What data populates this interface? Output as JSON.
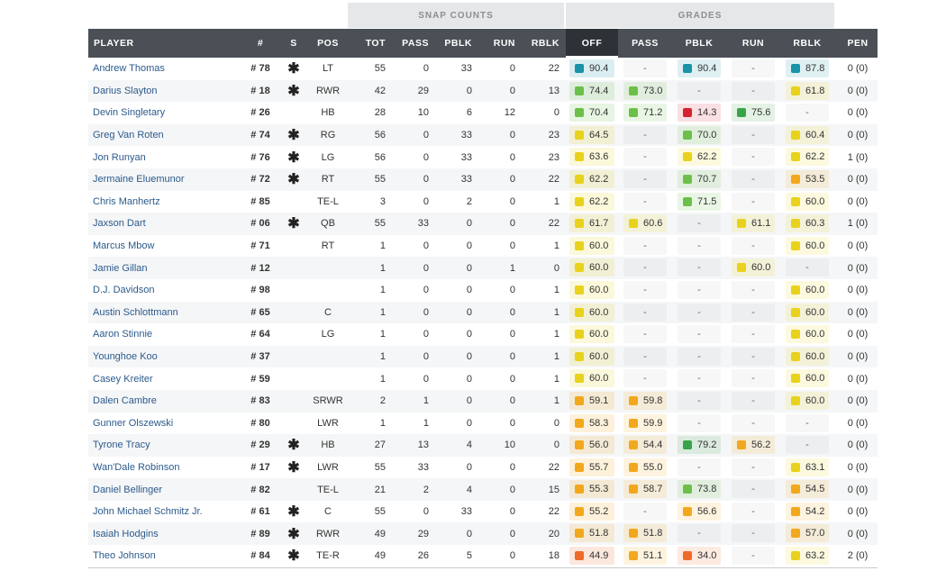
{
  "groups": {
    "snap": "SNAP COUNTS",
    "grades": "GRADES"
  },
  "headers": {
    "player": "PLAYER",
    "num": "#",
    "s": "S",
    "pos": "POS",
    "tot": "TOT",
    "pass": "PASS",
    "pblk": "PBLK",
    "run": "RUN",
    "rblk": "RBLK",
    "g_off": "OFF",
    "g_pass": "PASS",
    "g_pblk": "PBLK",
    "g_run": "RUN",
    "g_rblk": "RBLK",
    "pen": "PEN"
  },
  "colors": {
    "teal": "#1a93a8",
    "green": "#6cc04a",
    "darkgreen": "#3aa34a",
    "yellow": "#e8d21c",
    "orange": "#f2a81d",
    "darkorange": "#ee6a2a",
    "red": "#d4232f"
  },
  "rows": [
    {
      "name": "Andrew Thomas",
      "num": "# 78",
      "star": true,
      "pos": "LT",
      "tot": "55",
      "pass": "0",
      "pblk": "33",
      "run": "0",
      "rblk": "22",
      "g_off": "90.4",
      "g_pass": "-",
      "g_pblk": "90.4",
      "g_run": "-",
      "g_rblk": "87.8",
      "pen": "0 (0)"
    },
    {
      "name": "Darius Slayton",
      "num": "# 18",
      "star": true,
      "pos": "RWR",
      "tot": "42",
      "pass": "29",
      "pblk": "0",
      "run": "0",
      "rblk": "13",
      "g_off": "74.4",
      "g_pass": "73.0",
      "g_pblk": "-",
      "g_run": "-",
      "g_rblk": "61.8",
      "pen": "0 (0)"
    },
    {
      "name": "Devin Singletary",
      "num": "# 26",
      "star": false,
      "pos": "HB",
      "tot": "28",
      "pass": "10",
      "pblk": "6",
      "run": "12",
      "rblk": "0",
      "g_off": "70.4",
      "g_pass": "71.2",
      "g_pblk": "14.3",
      "g_run": "75.6",
      "g_rblk": "-",
      "pen": "0 (0)"
    },
    {
      "name": "Greg Van Roten",
      "num": "# 74",
      "star": true,
      "pos": "RG",
      "tot": "56",
      "pass": "0",
      "pblk": "33",
      "run": "0",
      "rblk": "23",
      "g_off": "64.5",
      "g_pass": "-",
      "g_pblk": "70.0",
      "g_run": "-",
      "g_rblk": "60.4",
      "pen": "0 (0)"
    },
    {
      "name": "Jon Runyan",
      "num": "# 76",
      "star": true,
      "pos": "LG",
      "tot": "56",
      "pass": "0",
      "pblk": "33",
      "run": "0",
      "rblk": "23",
      "g_off": "63.6",
      "g_pass": "-",
      "g_pblk": "62.2",
      "g_run": "-",
      "g_rblk": "62.2",
      "pen": "1 (0)"
    },
    {
      "name": "Jermaine Eluemunor",
      "num": "# 72",
      "star": true,
      "pos": "RT",
      "tot": "55",
      "pass": "0",
      "pblk": "33",
      "run": "0",
      "rblk": "22",
      "g_off": "62.2",
      "g_pass": "-",
      "g_pblk": "70.7",
      "g_run": "-",
      "g_rblk": "53.5",
      "pen": "0 (0)"
    },
    {
      "name": "Chris Manhertz",
      "num": "# 85",
      "star": false,
      "pos": "TE-L",
      "tot": "3",
      "pass": "0",
      "pblk": "2",
      "run": "0",
      "rblk": "1",
      "g_off": "62.2",
      "g_pass": "-",
      "g_pblk": "71.5",
      "g_run": "-",
      "g_rblk": "60.0",
      "pen": "0 (0)"
    },
    {
      "name": "Jaxson Dart",
      "num": "# 06",
      "star": true,
      "pos": "QB",
      "tot": "55",
      "pass": "33",
      "pblk": "0",
      "run": "0",
      "rblk": "22",
      "g_off": "61.7",
      "g_pass": "60.6",
      "g_pblk": "-",
      "g_run": "61.1",
      "g_rblk": "60.3",
      "pen": "1 (0)"
    },
    {
      "name": "Marcus Mbow",
      "num": "# 71",
      "star": false,
      "pos": "RT",
      "tot": "1",
      "pass": "0",
      "pblk": "0",
      "run": "0",
      "rblk": "1",
      "g_off": "60.0",
      "g_pass": "-",
      "g_pblk": "-",
      "g_run": "-",
      "g_rblk": "60.0",
      "pen": "0 (0)"
    },
    {
      "name": "Jamie Gillan",
      "num": "# 12",
      "star": false,
      "pos": "",
      "tot": "1",
      "pass": "0",
      "pblk": "0",
      "run": "1",
      "rblk": "0",
      "g_off": "60.0",
      "g_pass": "-",
      "g_pblk": "-",
      "g_run": "60.0",
      "g_rblk": "-",
      "pen": "0 (0)"
    },
    {
      "name": "D.J. Davidson",
      "num": "# 98",
      "star": false,
      "pos": "",
      "tot": "1",
      "pass": "0",
      "pblk": "0",
      "run": "0",
      "rblk": "1",
      "g_off": "60.0",
      "g_pass": "-",
      "g_pblk": "-",
      "g_run": "-",
      "g_rblk": "60.0",
      "pen": "0 (0)"
    },
    {
      "name": "Austin Schlottmann",
      "num": "# 65",
      "star": false,
      "pos": "C",
      "tot": "1",
      "pass": "0",
      "pblk": "0",
      "run": "0",
      "rblk": "1",
      "g_off": "60.0",
      "g_pass": "-",
      "g_pblk": "-",
      "g_run": "-",
      "g_rblk": "60.0",
      "pen": "0 (0)"
    },
    {
      "name": "Aaron Stinnie",
      "num": "# 64",
      "star": false,
      "pos": "LG",
      "tot": "1",
      "pass": "0",
      "pblk": "0",
      "run": "0",
      "rblk": "1",
      "g_off": "60.0",
      "g_pass": "-",
      "g_pblk": "-",
      "g_run": "-",
      "g_rblk": "60.0",
      "pen": "0 (0)"
    },
    {
      "name": "Younghoe Koo",
      "num": "# 37",
      "star": false,
      "pos": "",
      "tot": "1",
      "pass": "0",
      "pblk": "0",
      "run": "0",
      "rblk": "1",
      "g_off": "60.0",
      "g_pass": "-",
      "g_pblk": "-",
      "g_run": "-",
      "g_rblk": "60.0",
      "pen": "0 (0)"
    },
    {
      "name": "Casey Kreiter",
      "num": "# 59",
      "star": false,
      "pos": "",
      "tot": "1",
      "pass": "0",
      "pblk": "0",
      "run": "0",
      "rblk": "1",
      "g_off": "60.0",
      "g_pass": "-",
      "g_pblk": "-",
      "g_run": "-",
      "g_rblk": "60.0",
      "pen": "0 (0)"
    },
    {
      "name": "Dalen Cambre",
      "num": "# 83",
      "star": false,
      "pos": "SRWR",
      "tot": "2",
      "pass": "1",
      "pblk": "0",
      "run": "0",
      "rblk": "1",
      "g_off": "59.1",
      "g_pass": "59.8",
      "g_pblk": "-",
      "g_run": "-",
      "g_rblk": "60.0",
      "pen": "0 (0)"
    },
    {
      "name": "Gunner Olszewski",
      "num": "# 80",
      "star": false,
      "pos": "LWR",
      "tot": "1",
      "pass": "1",
      "pblk": "0",
      "run": "0",
      "rblk": "0",
      "g_off": "58.3",
      "g_pass": "59.9",
      "g_pblk": "-",
      "g_run": "-",
      "g_rblk": "-",
      "pen": "0 (0)"
    },
    {
      "name": "Tyrone Tracy",
      "num": "# 29",
      "star": true,
      "pos": "HB",
      "tot": "27",
      "pass": "13",
      "pblk": "4",
      "run": "10",
      "rblk": "0",
      "g_off": "56.0",
      "g_pass": "54.4",
      "g_pblk": "79.2",
      "g_run": "56.2",
      "g_rblk": "-",
      "pen": "0 (0)"
    },
    {
      "name": "Wan'Dale Robinson",
      "num": "# 17",
      "star": true,
      "pos": "LWR",
      "tot": "55",
      "pass": "33",
      "pblk": "0",
      "run": "0",
      "rblk": "22",
      "g_off": "55.7",
      "g_pass": "55.0",
      "g_pblk": "-",
      "g_run": "-",
      "g_rblk": "63.1",
      "pen": "0 (0)"
    },
    {
      "name": "Daniel Bellinger",
      "num": "# 82",
      "star": false,
      "pos": "TE-L",
      "tot": "21",
      "pass": "2",
      "pblk": "4",
      "run": "0",
      "rblk": "15",
      "g_off": "55.3",
      "g_pass": "58.7",
      "g_pblk": "73.8",
      "g_run": "-",
      "g_rblk": "54.5",
      "pen": "0 (0)"
    },
    {
      "name": "John Michael Schmitz Jr.",
      "num": "# 61",
      "star": true,
      "pos": "C",
      "tot": "55",
      "pass": "0",
      "pblk": "33",
      "run": "0",
      "rblk": "22",
      "g_off": "55.2",
      "g_pass": "-",
      "g_pblk": "56.6",
      "g_run": "-",
      "g_rblk": "54.2",
      "pen": "0 (0)"
    },
    {
      "name": "Isaiah Hodgins",
      "num": "# 89",
      "star": true,
      "pos": "RWR",
      "tot": "49",
      "pass": "29",
      "pblk": "0",
      "run": "0",
      "rblk": "20",
      "g_off": "51.8",
      "g_pass": "51.8",
      "g_pblk": "-",
      "g_run": "-",
      "g_rblk": "57.0",
      "pen": "0 (0)"
    },
    {
      "name": "Theo Johnson",
      "num": "# 84",
      "star": true,
      "pos": "TE-R",
      "tot": "49",
      "pass": "26",
      "pblk": "5",
      "run": "0",
      "rblk": "18",
      "g_off": "44.9",
      "g_pass": "51.1",
      "g_pblk": "34.0",
      "g_run": "-",
      "g_rblk": "63.2",
      "pen": "2 (0)"
    }
  ]
}
